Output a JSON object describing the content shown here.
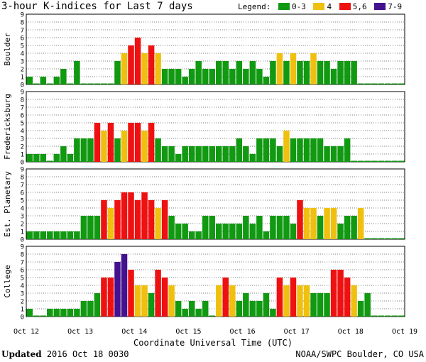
{
  "chart_data": {
    "type": "bar",
    "title": "3-hour K-indices for Last 7 days",
    "legend": {
      "label": "Legend:",
      "items": [
        {
          "label": "0-3",
          "color": "#119911"
        },
        {
          "label": "4",
          "color": "#f0c010"
        },
        {
          "label": "5,6",
          "color": "#ee1111"
        },
        {
          "label": "7-9",
          "color": "#44118f"
        }
      ]
    },
    "xlabel": "Coordinate Universal Time (UTC)",
    "x_ticks": [
      "Oct 12",
      "Oct 13",
      "Oct 14",
      "Oct 15",
      "Oct 16",
      "Oct 17",
      "Oct 18",
      "Oct 19"
    ],
    "ylim": [
      0,
      9
    ],
    "y_ticks": [
      "0",
      "1",
      "2",
      "3",
      "4",
      "5",
      "6",
      "7",
      "8",
      "9"
    ],
    "bins_per_day": 8,
    "grid": "dotted horizontal",
    "panels": [
      {
        "name": "Boulder",
        "values": [
          1,
          0,
          1,
          0,
          1,
          2,
          0,
          3,
          0,
          0,
          0,
          0,
          0,
          3,
          4,
          5,
          6,
          4,
          5,
          4,
          2,
          2,
          2,
          1,
          2,
          3,
          2,
          2,
          3,
          3,
          2,
          3,
          2,
          3,
          2,
          1,
          3,
          4,
          3,
          4,
          3,
          3,
          4,
          3,
          3,
          2,
          3,
          3,
          3,
          0,
          0,
          0,
          0,
          0,
          0,
          0
        ]
      },
      {
        "name": "Fredericksburg",
        "values": [
          1,
          1,
          1,
          0,
          1,
          2,
          1,
          3,
          3,
          3,
          5,
          4,
          5,
          3,
          4,
          5,
          5,
          4,
          5,
          3,
          2,
          2,
          1,
          2,
          2,
          2,
          2,
          2,
          2,
          2,
          2,
          3,
          2,
          1,
          3,
          3,
          3,
          2,
          4,
          3,
          3,
          3,
          3,
          3,
          2,
          2,
          2,
          3,
          0,
          0,
          0,
          0,
          0,
          0,
          0,
          0
        ]
      },
      {
        "name": "Est. Planetary",
        "values": [
          1,
          1,
          1,
          1,
          1,
          1,
          1,
          1,
          3,
          3,
          3,
          5,
          4,
          5,
          6,
          6,
          5,
          6,
          5,
          4,
          5,
          3,
          2,
          2,
          1,
          1,
          3,
          3,
          2,
          2,
          2,
          2,
          3,
          2,
          3,
          1,
          3,
          3,
          3,
          2,
          5,
          4,
          4,
          3,
          4,
          4,
          2,
          3,
          3,
          4,
          0,
          0,
          0,
          0,
          0,
          0
        ]
      },
      {
        "name": "College",
        "values": [
          1,
          0,
          0,
          1,
          1,
          1,
          1,
          1,
          2,
          2,
          3,
          5,
          5,
          7,
          8,
          6,
          4,
          4,
          3,
          6,
          5,
          4,
          2,
          1,
          2,
          1,
          2,
          0,
          4,
          5,
          4,
          2,
          3,
          2,
          2,
          3,
          1,
          5,
          4,
          5,
          4,
          4,
          3,
          3,
          3,
          6,
          6,
          5,
          4,
          2,
          3,
          0,
          0,
          0,
          0,
          0
        ]
      }
    ]
  },
  "footer": {
    "updated_label": "Updated",
    "updated_value": "2016 Oct 18 0030",
    "credit": "NOAA/SWPC Boulder, CO USA"
  }
}
